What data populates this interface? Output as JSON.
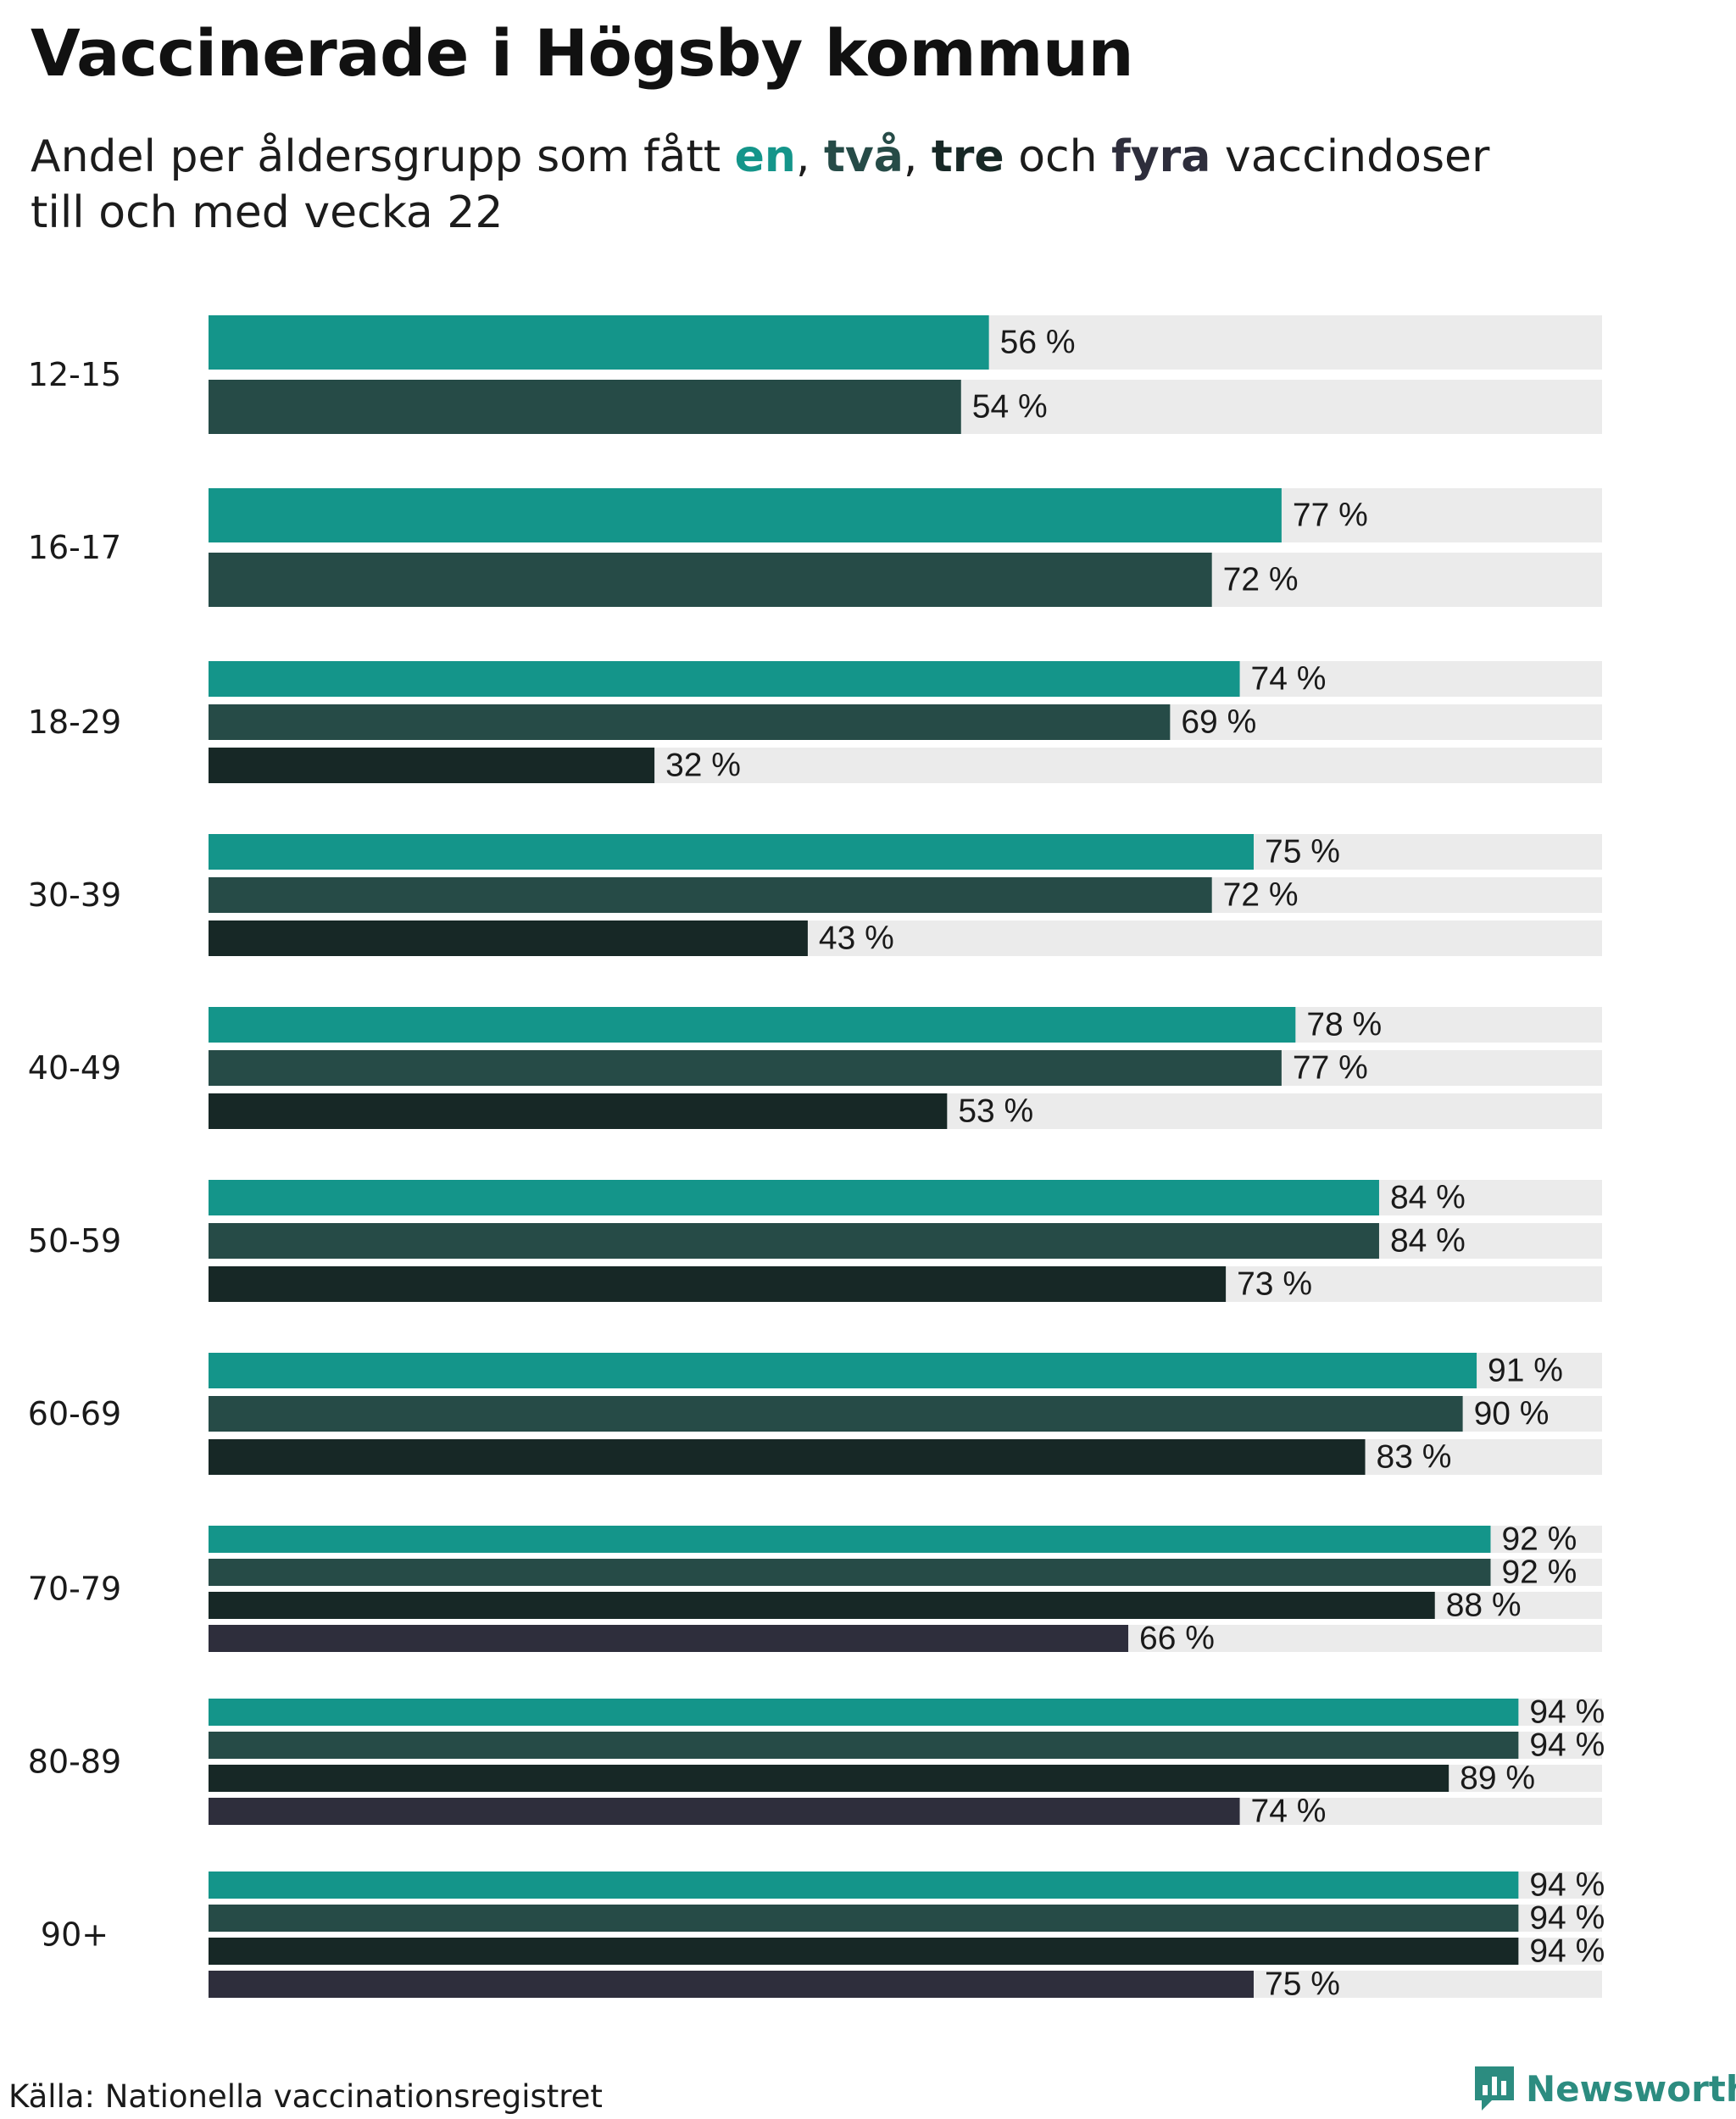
{
  "header": {
    "title": "Vaccinerade i Högsby kommun",
    "subtitle_pre": "Andel per åldersgrupp som fått ",
    "sep1": ", ",
    "sep2": ", ",
    "sep3": " och ",
    "subtitle_post": " vaccindoser",
    "subtitle_line2": "till och med vecka 22"
  },
  "footer": {
    "source": "Källa: Nationella vaccinationsregistret",
    "brand": "Newsworthy"
  },
  "colors": {
    "one_dose": "#14958a",
    "two_doses": "#264b47",
    "three_doses": "#172826",
    "four_doses": "#2e2e3c",
    "track": "#ebebeb",
    "brand": "#2c8c80"
  },
  "chart_data": {
    "type": "bar",
    "orientation": "horizontal",
    "title": "Vaccinerade i Högsby kommun",
    "xlim": [
      0,
      100
    ],
    "unit_suffix": " %",
    "categories": [
      "12-15",
      "16-17",
      "18-29",
      "30-39",
      "40-49",
      "50-59",
      "60-69",
      "70-79",
      "80-89",
      "90+"
    ],
    "series": [
      {
        "name": "en",
        "key": "one_dose",
        "values": [
          56,
          77,
          74,
          75,
          78,
          84,
          91,
          92,
          94,
          94
        ]
      },
      {
        "name": "två",
        "key": "two_doses",
        "values": [
          54,
          72,
          69,
          72,
          77,
          84,
          90,
          92,
          94,
          94
        ]
      },
      {
        "name": "tre",
        "key": "three_doses",
        "values": [
          null,
          null,
          32,
          43,
          53,
          73,
          83,
          88,
          89,
          94
        ]
      },
      {
        "name": "fyra",
        "key": "four_doses",
        "values": [
          null,
          null,
          null,
          null,
          null,
          null,
          null,
          66,
          74,
          75
        ]
      }
    ]
  }
}
